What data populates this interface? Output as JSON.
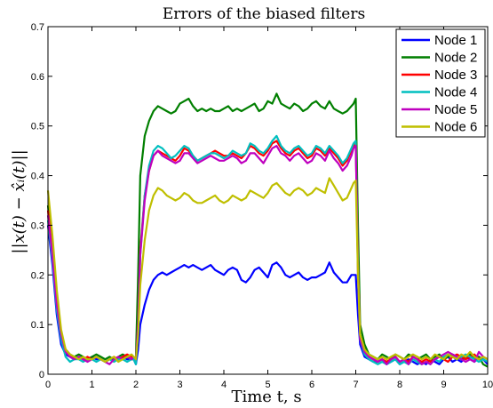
{
  "chart_data": {
    "type": "line",
    "title": "Errors of the biased filters",
    "xlabel": "Time t, s",
    "ylabel": "||x(t) − x̂ᵢ(t)||",
    "xlim": [
      0,
      10
    ],
    "ylim": [
      0,
      0.7
    ],
    "xticks": [
      "0",
      "1",
      "2",
      "3",
      "4",
      "5",
      "6",
      "7",
      "8",
      "9",
      "10"
    ],
    "yticks": [
      "0",
      "0.1",
      "0.2",
      "0.3",
      "0.4",
      "0.5",
      "0.6",
      "0.7"
    ],
    "grid": false,
    "legend_position": "top-right",
    "x": [
      0,
      0.1,
      0.2,
      0.3,
      0.4,
      0.5,
      0.6,
      0.7,
      0.8,
      0.9,
      1.0,
      1.1,
      1.2,
      1.3,
      1.4,
      1.5,
      1.6,
      1.7,
      1.8,
      1.9,
      1.95,
      2.0,
      2.05,
      2.1,
      2.2,
      2.3,
      2.4,
      2.5,
      2.6,
      2.7,
      2.8,
      2.9,
      3.0,
      3.1,
      3.2,
      3.3,
      3.4,
      3.5,
      3.6,
      3.7,
      3.8,
      3.9,
      4.0,
      4.1,
      4.2,
      4.3,
      4.4,
      4.5,
      4.6,
      4.7,
      4.8,
      4.9,
      5.0,
      5.1,
      5.2,
      5.3,
      5.4,
      5.5,
      5.6,
      5.7,
      5.8,
      5.9,
      6.0,
      6.1,
      6.2,
      6.3,
      6.4,
      6.5,
      6.6,
      6.7,
      6.8,
      6.9,
      6.95,
      7.0,
      7.05,
      7.1,
      7.2,
      7.3,
      7.4,
      7.5,
      7.6,
      7.7,
      7.8,
      7.9,
      8.0,
      8.1,
      8.2,
      8.3,
      8.4,
      8.5,
      8.6,
      8.7,
      8.8,
      8.9,
      9.0,
      9.1,
      9.2,
      9.3,
      9.4,
      9.5,
      9.6,
      9.7,
      9.8,
      9.9,
      10.0
    ],
    "series": [
      {
        "name": "Node 1",
        "color": "#0000ff",
        "values": [
          0.3,
          0.22,
          0.12,
          0.06,
          0.04,
          0.035,
          0.03,
          0.035,
          0.03,
          0.03,
          0.035,
          0.03,
          0.03,
          0.025,
          0.03,
          0.03,
          0.03,
          0.035,
          0.03,
          0.03,
          0.03,
          0.02,
          0.05,
          0.1,
          0.14,
          0.17,
          0.19,
          0.2,
          0.205,
          0.2,
          0.205,
          0.21,
          0.215,
          0.22,
          0.215,
          0.22,
          0.215,
          0.21,
          0.215,
          0.22,
          0.21,
          0.205,
          0.2,
          0.21,
          0.215,
          0.21,
          0.19,
          0.185,
          0.195,
          0.21,
          0.215,
          0.205,
          0.195,
          0.22,
          0.225,
          0.215,
          0.2,
          0.195,
          0.2,
          0.205,
          0.195,
          0.19,
          0.195,
          0.195,
          0.2,
          0.205,
          0.225,
          0.205,
          0.195,
          0.185,
          0.185,
          0.2,
          0.2,
          0.2,
          0.12,
          0.06,
          0.035,
          0.03,
          0.025,
          0.025,
          0.03,
          0.02,
          0.025,
          0.03,
          0.02,
          0.025,
          0.03,
          0.025,
          0.02,
          0.025,
          0.02,
          0.03,
          0.025,
          0.02,
          0.03,
          0.035,
          0.025,
          0.03,
          0.025,
          0.035,
          0.03,
          0.025,
          0.035,
          0.03,
          0.02
        ]
      },
      {
        "name": "Node 2",
        "color": "#007f00",
        "values": [
          0.34,
          0.24,
          0.14,
          0.08,
          0.05,
          0.04,
          0.035,
          0.04,
          0.035,
          0.03,
          0.035,
          0.04,
          0.035,
          0.03,
          0.035,
          0.03,
          0.035,
          0.04,
          0.035,
          0.03,
          0.03,
          0.035,
          0.2,
          0.4,
          0.48,
          0.51,
          0.53,
          0.54,
          0.535,
          0.53,
          0.525,
          0.53,
          0.545,
          0.55,
          0.555,
          0.54,
          0.53,
          0.535,
          0.53,
          0.535,
          0.53,
          0.53,
          0.535,
          0.54,
          0.53,
          0.535,
          0.53,
          0.535,
          0.54,
          0.545,
          0.53,
          0.535,
          0.55,
          0.545,
          0.565,
          0.545,
          0.54,
          0.535,
          0.545,
          0.54,
          0.53,
          0.535,
          0.545,
          0.55,
          0.54,
          0.535,
          0.55,
          0.535,
          0.53,
          0.525,
          0.53,
          0.54,
          0.545,
          0.555,
          0.3,
          0.1,
          0.06,
          0.04,
          0.035,
          0.03,
          0.04,
          0.035,
          0.03,
          0.04,
          0.035,
          0.03,
          0.04,
          0.035,
          0.03,
          0.035,
          0.04,
          0.03,
          0.035,
          0.04,
          0.03,
          0.035,
          0.04,
          0.035,
          0.03,
          0.035,
          0.04,
          0.03,
          0.035,
          0.02,
          0.015
        ]
      },
      {
        "name": "Node 3",
        "color": "#ff0000",
        "values": [
          0.33,
          0.24,
          0.15,
          0.08,
          0.05,
          0.04,
          0.03,
          0.035,
          0.03,
          0.035,
          0.03,
          0.035,
          0.03,
          0.025,
          0.03,
          0.035,
          0.03,
          0.035,
          0.04,
          0.035,
          0.03,
          0.025,
          0.1,
          0.25,
          0.36,
          0.41,
          0.44,
          0.45,
          0.445,
          0.44,
          0.435,
          0.43,
          0.44,
          0.455,
          0.45,
          0.44,
          0.43,
          0.435,
          0.44,
          0.445,
          0.45,
          0.445,
          0.44,
          0.44,
          0.445,
          0.44,
          0.435,
          0.445,
          0.46,
          0.455,
          0.445,
          0.44,
          0.45,
          0.465,
          0.47,
          0.455,
          0.445,
          0.44,
          0.45,
          0.455,
          0.445,
          0.435,
          0.44,
          0.455,
          0.45,
          0.44,
          0.455,
          0.445,
          0.435,
          0.42,
          0.43,
          0.45,
          0.46,
          0.465,
          0.22,
          0.08,
          0.05,
          0.035,
          0.03,
          0.025,
          0.03,
          0.025,
          0.03,
          0.035,
          0.025,
          0.03,
          0.025,
          0.035,
          0.03,
          0.025,
          0.03,
          0.025,
          0.03,
          0.035,
          0.03,
          0.025,
          0.035,
          0.04,
          0.035,
          0.03,
          0.035,
          0.04,
          0.03,
          0.035,
          0.03
        ]
      },
      {
        "name": "Node 4",
        "color": "#00bfbf",
        "values": [
          0.31,
          0.23,
          0.13,
          0.07,
          0.035,
          0.025,
          0.03,
          0.03,
          0.025,
          0.03,
          0.03,
          0.025,
          0.03,
          0.025,
          0.03,
          0.025,
          0.03,
          0.03,
          0.025,
          0.03,
          0.03,
          0.02,
          0.09,
          0.24,
          0.36,
          0.42,
          0.45,
          0.46,
          0.455,
          0.445,
          0.435,
          0.44,
          0.45,
          0.46,
          0.455,
          0.44,
          0.43,
          0.435,
          0.44,
          0.445,
          0.445,
          0.44,
          0.435,
          0.44,
          0.45,
          0.445,
          0.44,
          0.445,
          0.465,
          0.46,
          0.45,
          0.445,
          0.455,
          0.47,
          0.48,
          0.46,
          0.45,
          0.445,
          0.455,
          0.46,
          0.45,
          0.44,
          0.445,
          0.46,
          0.455,
          0.445,
          0.46,
          0.45,
          0.44,
          0.425,
          0.435,
          0.455,
          0.465,
          0.47,
          0.21,
          0.07,
          0.04,
          0.03,
          0.025,
          0.02,
          0.025,
          0.02,
          0.025,
          0.03,
          0.02,
          0.025,
          0.02,
          0.03,
          0.025,
          0.02,
          0.025,
          0.02,
          0.03,
          0.025,
          0.035,
          0.04,
          0.035,
          0.03,
          0.035,
          0.04,
          0.035,
          0.03,
          0.025,
          0.03,
          0.025
        ]
      },
      {
        "name": "Node 5",
        "color": "#bf00bf",
        "values": [
          0.32,
          0.24,
          0.14,
          0.08,
          0.045,
          0.035,
          0.03,
          0.035,
          0.03,
          0.025,
          0.03,
          0.035,
          0.03,
          0.025,
          0.02,
          0.03,
          0.035,
          0.03,
          0.035,
          0.03,
          0.035,
          0.03,
          0.1,
          0.24,
          0.35,
          0.41,
          0.44,
          0.45,
          0.44,
          0.435,
          0.43,
          0.425,
          0.43,
          0.445,
          0.445,
          0.435,
          0.425,
          0.43,
          0.435,
          0.44,
          0.435,
          0.43,
          0.43,
          0.435,
          0.44,
          0.435,
          0.425,
          0.43,
          0.445,
          0.445,
          0.435,
          0.425,
          0.44,
          0.455,
          0.46,
          0.445,
          0.44,
          0.43,
          0.44,
          0.445,
          0.435,
          0.425,
          0.43,
          0.445,
          0.44,
          0.43,
          0.45,
          0.435,
          0.425,
          0.41,
          0.42,
          0.44,
          0.455,
          0.46,
          0.2,
          0.07,
          0.045,
          0.035,
          0.03,
          0.025,
          0.03,
          0.02,
          0.03,
          0.035,
          0.025,
          0.03,
          0.02,
          0.035,
          0.03,
          0.02,
          0.025,
          0.02,
          0.03,
          0.035,
          0.04,
          0.045,
          0.04,
          0.035,
          0.03,
          0.025,
          0.03,
          0.025,
          0.045,
          0.035,
          0.03
        ]
      },
      {
        "name": "Node 6",
        "color": "#bfbf00",
        "values": [
          0.37,
          0.28,
          0.17,
          0.09,
          0.05,
          0.04,
          0.035,
          0.03,
          0.035,
          0.03,
          0.03,
          0.035,
          0.03,
          0.025,
          0.03,
          0.035,
          0.025,
          0.03,
          0.035,
          0.04,
          0.035,
          0.03,
          0.08,
          0.18,
          0.27,
          0.33,
          0.36,
          0.375,
          0.37,
          0.36,
          0.355,
          0.35,
          0.355,
          0.365,
          0.36,
          0.35,
          0.345,
          0.345,
          0.35,
          0.355,
          0.36,
          0.35,
          0.345,
          0.35,
          0.36,
          0.355,
          0.35,
          0.355,
          0.37,
          0.365,
          0.36,
          0.355,
          0.365,
          0.38,
          0.385,
          0.375,
          0.365,
          0.36,
          0.37,
          0.375,
          0.37,
          0.36,
          0.365,
          0.375,
          0.37,
          0.365,
          0.395,
          0.38,
          0.365,
          0.35,
          0.355,
          0.375,
          0.385,
          0.39,
          0.2,
          0.08,
          0.05,
          0.04,
          0.035,
          0.03,
          0.035,
          0.03,
          0.035,
          0.04,
          0.035,
          0.03,
          0.035,
          0.04,
          0.035,
          0.03,
          0.035,
          0.03,
          0.04,
          0.035,
          0.03,
          0.04,
          0.035,
          0.03,
          0.04,
          0.035,
          0.045,
          0.035,
          0.03,
          0.035,
          0.03
        ]
      }
    ]
  }
}
